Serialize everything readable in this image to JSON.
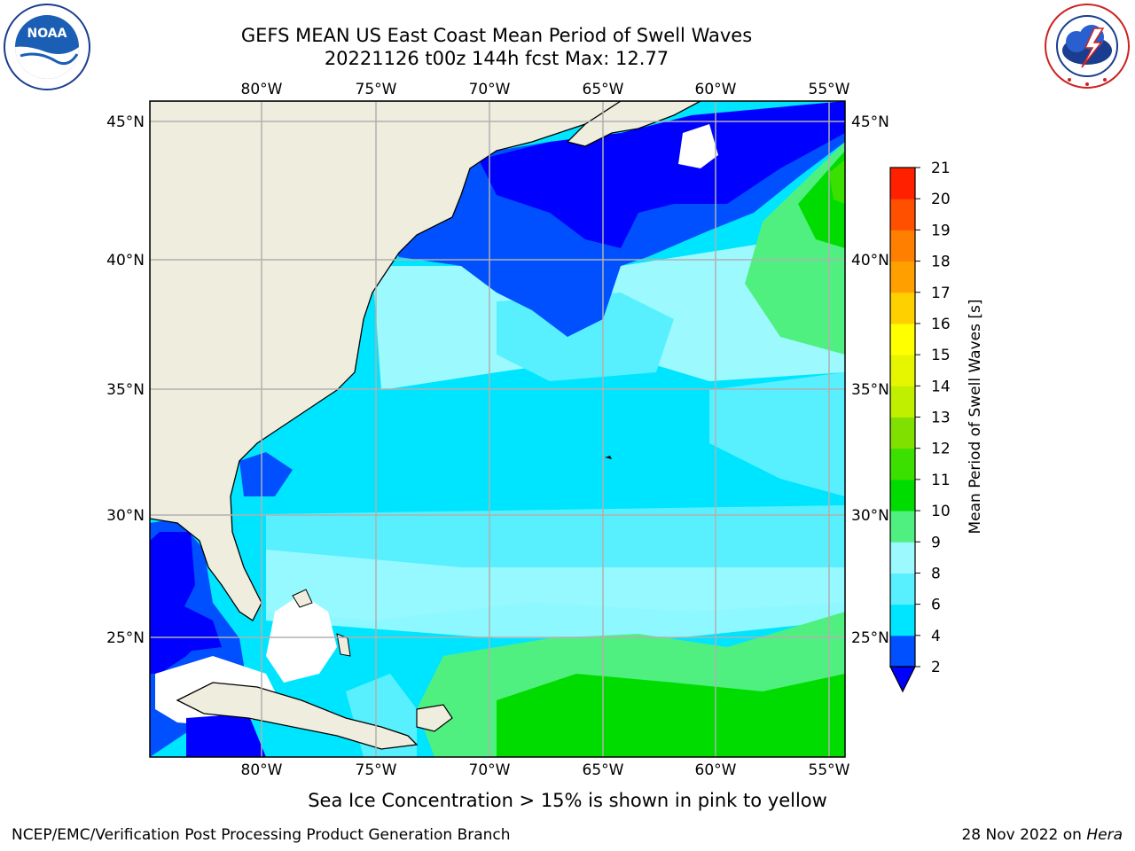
{
  "header": {
    "title_line1": "GEFS MEAN US East Coast Mean Period of Swell Waves",
    "title_line2": "20221126 t00z 144h fcst   Max: 12.77"
  },
  "logos": {
    "left": {
      "text": "NOAA",
      "ring_text": "NATIONAL OCEANIC AND ATMOSPHERIC ADMINISTRATION",
      "bottom_text": "U.S. DEPARTMENT OF COMMERCE"
    },
    "right": {
      "ring_text": "NATIONAL WEATHER SERVICE"
    }
  },
  "map": {
    "lon_labels": [
      "80°W",
      "75°W",
      "70°W",
      "65°W",
      "60°W",
      "55°W"
    ],
    "lat_labels": [
      "45°N",
      "40°N",
      "35°N",
      "30°N",
      "25°N"
    ]
  },
  "colorbar": {
    "label": "Mean Period of Swell Waves [s]",
    "ticks": [
      "2",
      "4",
      "6",
      "8",
      "9",
      "10",
      "11",
      "12",
      "13",
      "14",
      "15",
      "16",
      "17",
      "18",
      "19",
      "20",
      "21"
    ],
    "colors": [
      "#0050ff",
      "#00e5ff",
      "#58f0ff",
      "#9cfaff",
      "#50f080",
      "#00dc00",
      "#3ce000",
      "#80e000",
      "#c0f000",
      "#e6f500",
      "#ffff00",
      "#ffd000",
      "#ffa000",
      "#ff8000",
      "#ff5000",
      "#ff2000"
    ],
    "extend_color": "#0000ff"
  },
  "caption": "Sea Ice Concentration > 15% is shown in pink to yellow",
  "footer": {
    "left": "NCEP/EMC/Verification Post Processing Product Generation Branch",
    "right_prefix": "28 Nov 2022 on ",
    "right_italic": "Hera"
  }
}
